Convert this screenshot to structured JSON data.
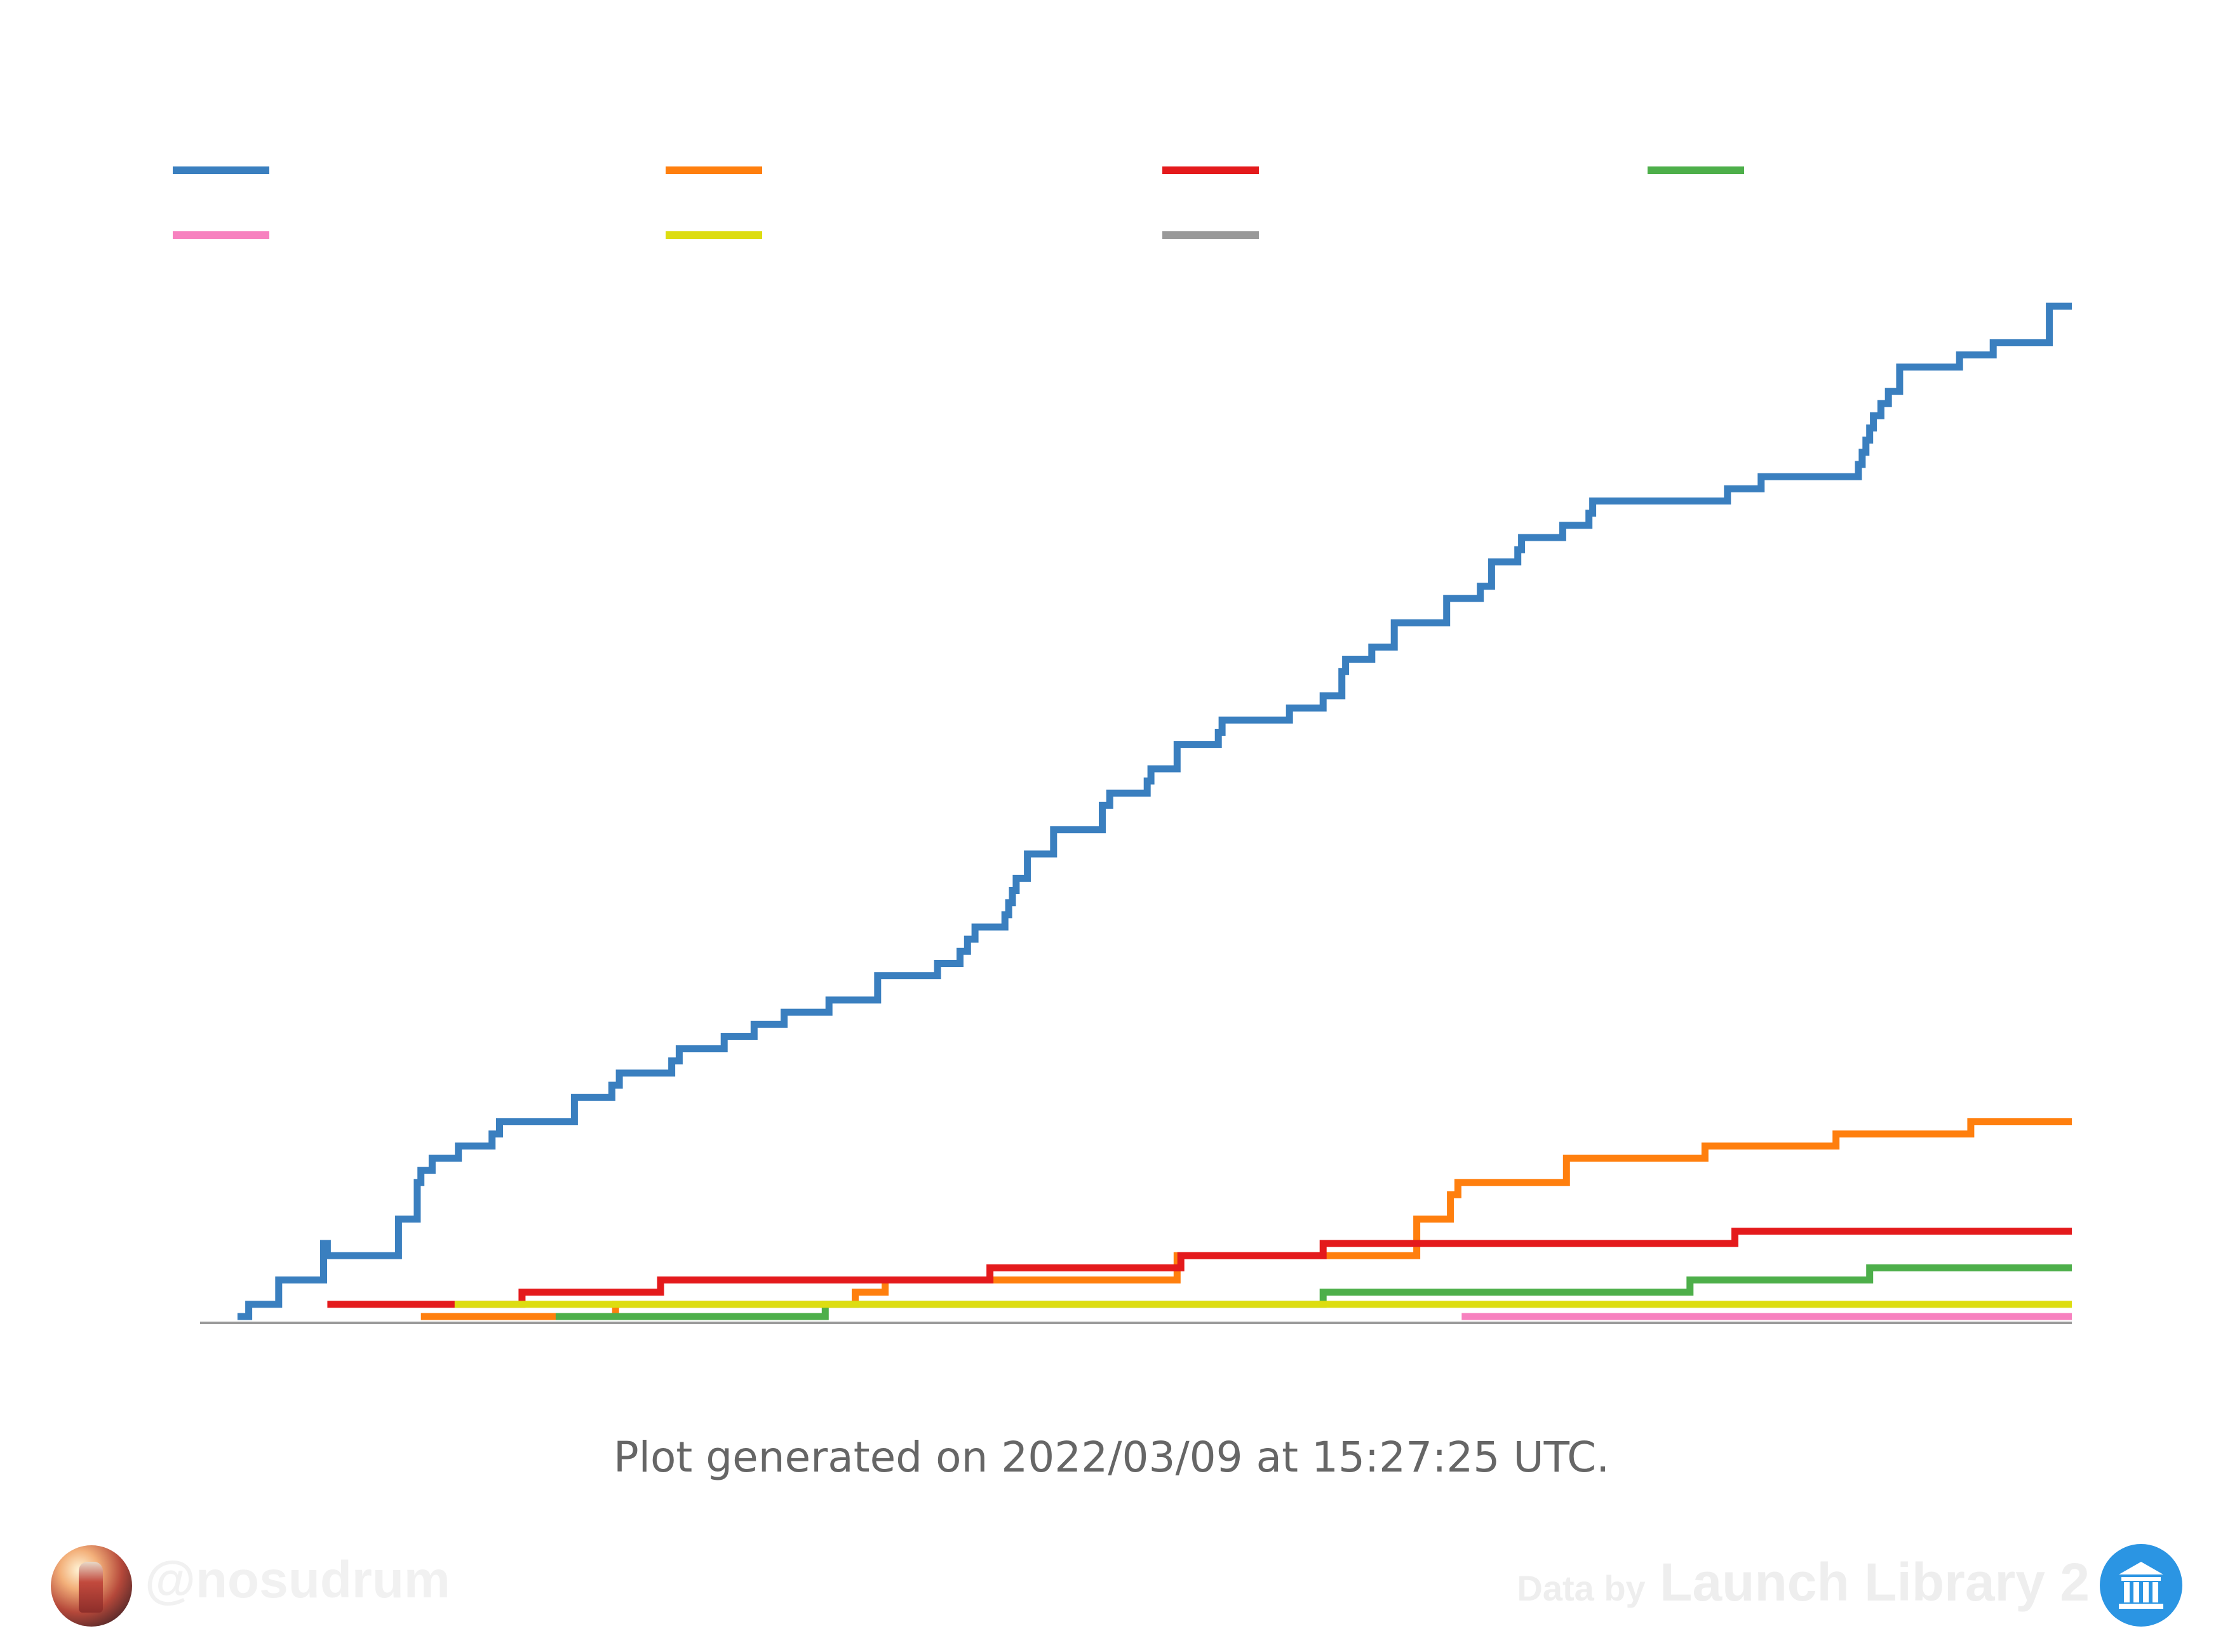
{
  "chart_data": {
    "type": "line",
    "title": "",
    "xlabel": "",
    "ylabel": "",
    "series": [
      {
        "color": "#3a7fbf",
        "x": [
          0.02,
          0.026,
          0.042,
          0.066,
          0.068,
          0.106,
          0.116,
          0.118,
          0.124,
          0.138,
          0.156,
          0.16,
          0.2,
          0.22,
          0.224,
          0.252,
          0.256,
          0.28,
          0.296,
          0.312,
          0.336,
          0.362,
          0.394,
          0.406,
          0.41,
          0.414,
          0.43,
          0.432,
          0.434,
          0.436,
          0.442,
          0.456,
          0.482,
          0.486,
          0.506,
          0.508,
          0.522,
          0.544,
          0.546,
          0.582,
          0.6,
          0.61,
          0.612,
          0.626,
          0.638,
          0.666,
          0.684,
          0.69,
          0.704,
          0.706,
          0.728,
          0.742,
          0.744,
          0.816,
          0.834,
          0.886,
          0.888,
          0.89,
          0.892,
          0.894,
          0.898,
          0.902,
          0.908,
          0.94,
          0.958,
          0.988
        ],
        "y": [
          0,
          1,
          3,
          6,
          5,
          8,
          11,
          12,
          13,
          14,
          15,
          16,
          18,
          19,
          20,
          21,
          22,
          23,
          24,
          25,
          26,
          28,
          29,
          30,
          31,
          32,
          33,
          34,
          35,
          36,
          38,
          40,
          42,
          43,
          44,
          45,
          47,
          48,
          49,
          50,
          51,
          53,
          54,
          55,
          57,
          59,
          60,
          62,
          63,
          64,
          65,
          66,
          67,
          68,
          69,
          70,
          71,
          72,
          73,
          74,
          75,
          76,
          78,
          79,
          80,
          83
        ]
      },
      {
        "color": "#ff7f0e",
        "x": [
          0.118,
          0.222,
          0.35,
          0.366,
          0.522,
          0.65,
          0.668,
          0.672,
          0.73,
          0.804,
          0.874,
          0.946
        ],
        "y": [
          0,
          1,
          2,
          3,
          5,
          8,
          10,
          11,
          13,
          14,
          15,
          16
        ]
      },
      {
        "color": "#e41a1c",
        "x": [
          0.068,
          0.172,
          0.246,
          0.422,
          0.524,
          0.6,
          0.82
        ],
        "y": [
          1,
          2,
          3,
          4,
          5,
          6,
          7
        ]
      },
      {
        "color": "#4daf4a",
        "x": [
          0.19,
          0.334,
          0.6,
          0.796,
          0.892
        ],
        "y": [
          0,
          1,
          2,
          3,
          4
        ]
      },
      {
        "color": "#f781bf",
        "x": [
          0.674
        ],
        "y": [
          0
        ]
      },
      {
        "color": "#dddd11",
        "x": [
          0.136
        ],
        "y": [
          1
        ]
      },
      {
        "color": "#999999",
        "x": [],
        "y": []
      }
    ],
    "xlim": [
      0,
      1
    ],
    "ylim": [
      0,
      83
    ],
    "grid": false,
    "legend": "top-two-rows",
    "x_range_end": 1.0
  },
  "footer": {
    "generated": "Plot generated on 2022/03/09 at 15:27:25 UTC.",
    "handle": "@nosudrum",
    "data_by": "Data by",
    "library": "Launch Library 2"
  }
}
